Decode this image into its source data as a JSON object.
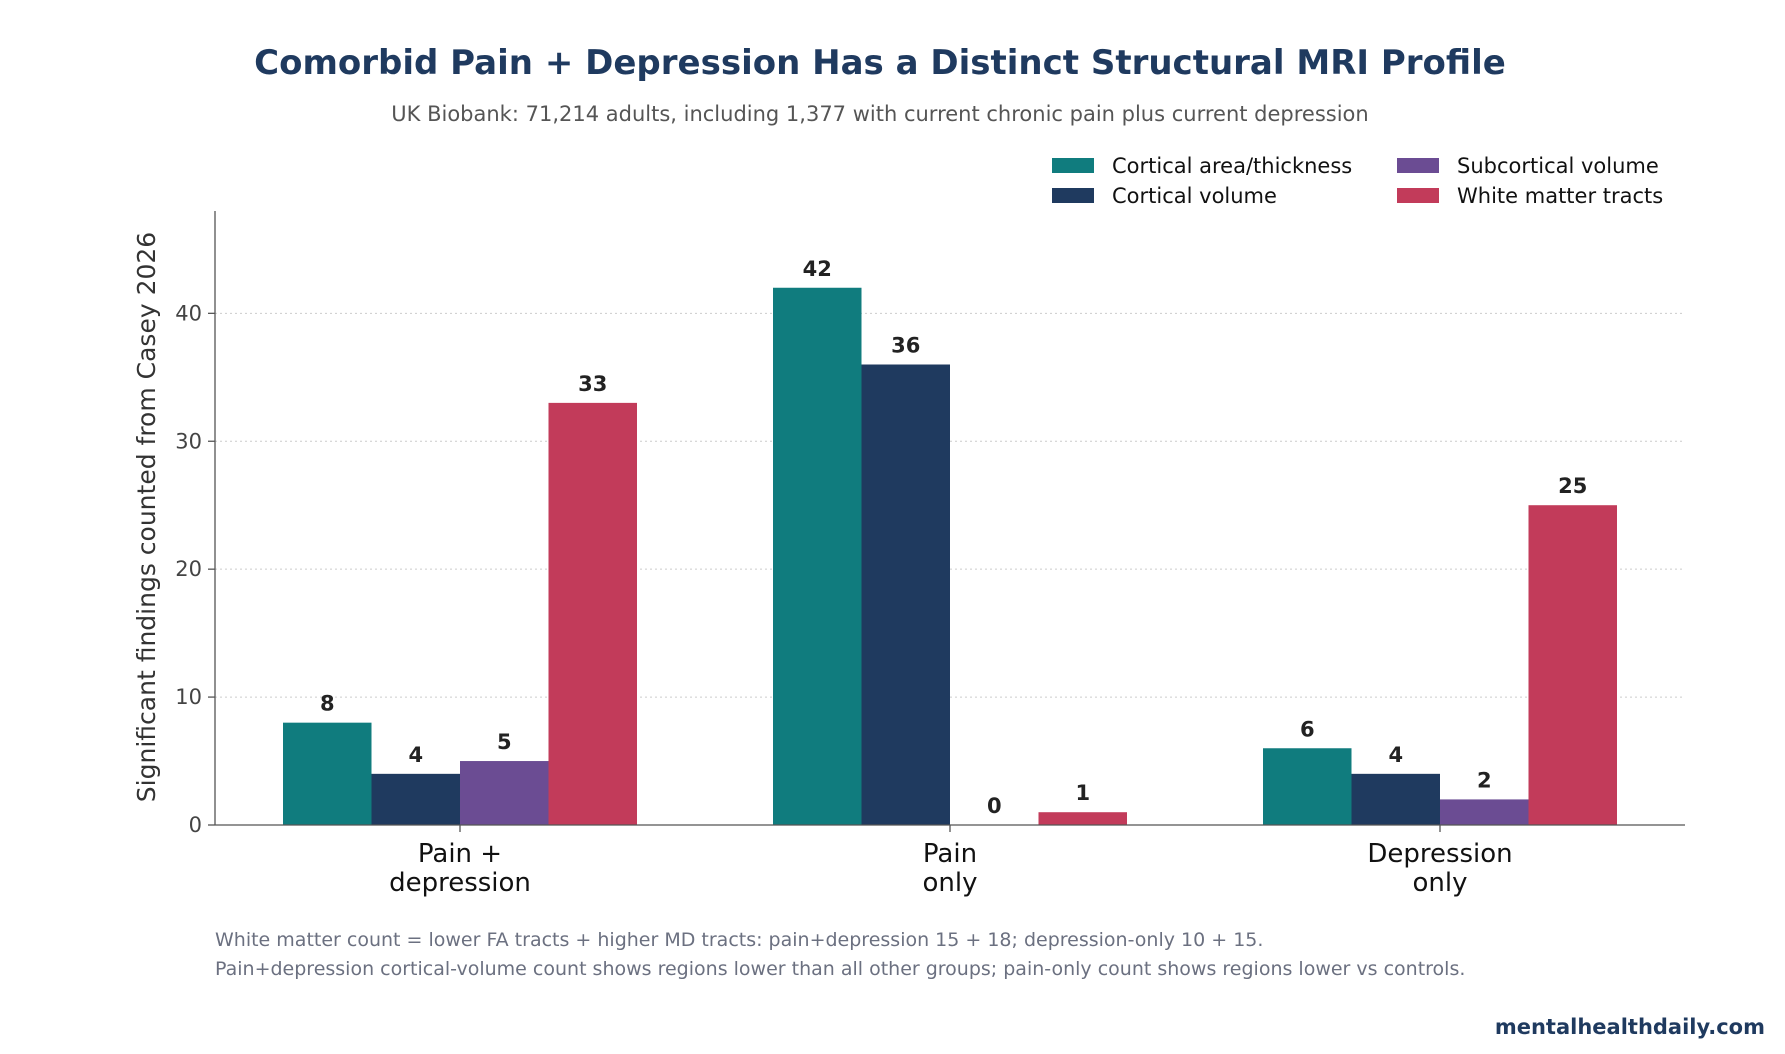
{
  "chart_data": {
    "type": "bar",
    "title": "Comorbid Pain + Depression Has a Distinct Structural MRI Profile",
    "subtitle": "UK Biobank: 71,214 adults, including 1,377 with current chronic pain plus current depression",
    "ylabel": "Significant findings counted from Casey 2026",
    "ylim": [
      0,
      48
    ],
    "yticks": [
      0,
      10,
      20,
      30,
      40
    ],
    "grid": true,
    "legend_position": "top-right",
    "categories": [
      [
        "Pain +",
        "depression"
      ],
      [
        "Pain",
        "only"
      ],
      [
        "Depression",
        "only"
      ]
    ],
    "series": [
      {
        "name": "Cortical area/thickness",
        "color": "#107c7e",
        "values": [
          8,
          42,
          6
        ]
      },
      {
        "name": "Cortical volume",
        "color": "#1f3a5f",
        "values": [
          4,
          36,
          4
        ]
      },
      {
        "name": "Subcortical volume",
        "color": "#6b4c93",
        "values": [
          5,
          0,
          2
        ]
      },
      {
        "name": "White matter tracts",
        "color": "#c23b5a",
        "values": [
          33,
          1,
          25
        ]
      }
    ],
    "notes": [
      "White matter count = lower FA tracts + higher MD tracts: pain+depression 15 + 18; depression-only 10 + 15.",
      "Pain+depression cortical-volume count shows regions lower than all other groups; pain-only count shows regions lower vs controls."
    ],
    "brand": "mentalhealthdaily.com"
  }
}
